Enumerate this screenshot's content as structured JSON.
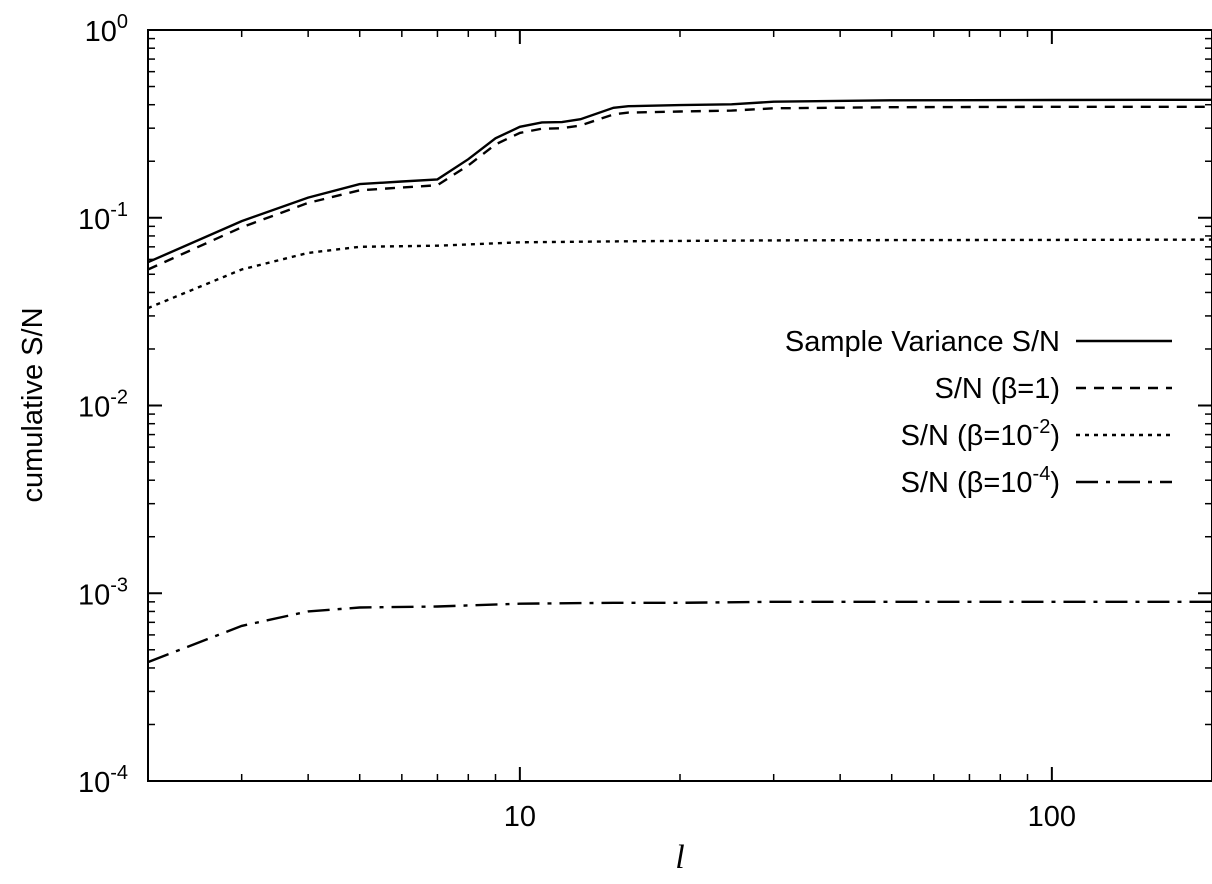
{
  "chart_data": {
    "type": "line",
    "xlabel": "l",
    "ylabel": "cumulative S/N",
    "xscale": "log",
    "yscale": "log",
    "xlim": [
      2,
      200
    ],
    "ylim": [
      0.0001,
      1
    ],
    "grid": false,
    "legend_position": "right",
    "x_ticks": [
      {
        "value": 10,
        "label": "10"
      },
      {
        "value": 100,
        "label": "100"
      }
    ],
    "y_ticks": [
      {
        "value": 1,
        "base": "10",
        "exp": "0"
      },
      {
        "value": 0.1,
        "base": "10",
        "exp": "-1"
      },
      {
        "value": 0.01,
        "base": "10",
        "exp": "-2"
      },
      {
        "value": 0.001,
        "base": "10",
        "exp": "-3"
      },
      {
        "value": 0.0001,
        "base": "10",
        "exp": "-4"
      }
    ],
    "series": [
      {
        "name": "Sample Variance S/N",
        "legend_text": "Sample Variance S/N",
        "legend_sup": "",
        "legend_tail": "",
        "style": "solid",
        "x": [
          2,
          3,
          4,
          5,
          6,
          7,
          8,
          9,
          10,
          11,
          12,
          13,
          15,
          16,
          20,
          25,
          30,
          50,
          70,
          100,
          150,
          200
        ],
        "y": [
          0.058,
          0.096,
          0.128,
          0.151,
          0.156,
          0.16,
          0.205,
          0.265,
          0.305,
          0.322,
          0.323,
          0.335,
          0.385,
          0.393,
          0.398,
          0.402,
          0.415,
          0.422,
          0.423,
          0.424,
          0.425,
          0.425
        ]
      },
      {
        "name": "S/N  (β=1)",
        "legend_text": "S/N  (β=1)",
        "legend_sup": "",
        "legend_tail": "",
        "style": "dashed",
        "x": [
          2,
          3,
          4,
          5,
          6,
          7,
          8,
          9,
          10,
          11,
          12,
          13,
          15,
          16,
          20,
          25,
          30,
          50,
          70,
          100,
          150,
          200
        ],
        "y": [
          0.053,
          0.089,
          0.12,
          0.14,
          0.145,
          0.149,
          0.19,
          0.246,
          0.283,
          0.298,
          0.3,
          0.31,
          0.355,
          0.363,
          0.368,
          0.372,
          0.383,
          0.388,
          0.389,
          0.39,
          0.39,
          0.39
        ]
      },
      {
        "name": "S/N  (β=10-2)",
        "legend_text": "S/N  (β=10",
        "legend_sup": "-2",
        "legend_tail": ")",
        "style": "dotted",
        "x": [
          2,
          3,
          4,
          5,
          7,
          10,
          15,
          20,
          30,
          50,
          100,
          200
        ],
        "y": [
          0.033,
          0.053,
          0.065,
          0.07,
          0.071,
          0.074,
          0.0748,
          0.0753,
          0.0757,
          0.076,
          0.0762,
          0.0765
        ]
      },
      {
        "name": "S/N  (β=10-4)",
        "legend_text": "S/N  (β=10",
        "legend_sup": "-4",
        "legend_tail": ")",
        "style": "dashdot",
        "x": [
          2,
          3,
          4,
          5,
          7,
          10,
          15,
          20,
          30,
          50,
          100,
          200
        ],
        "y": [
          0.00043,
          0.00067,
          0.0008,
          0.00084,
          0.00085,
          0.00088,
          0.00089,
          0.00089,
          0.0009,
          0.0009,
          0.0009,
          0.0009
        ]
      }
    ]
  }
}
